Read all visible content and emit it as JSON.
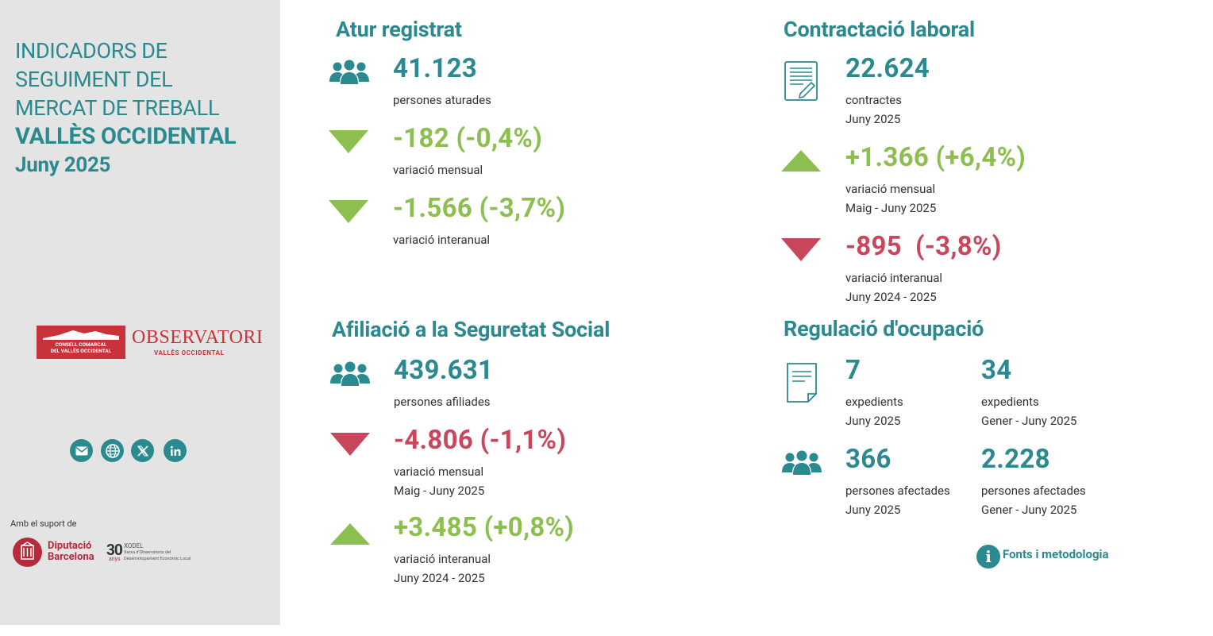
{
  "sidebar": {
    "title_lines": [
      "INDICADORS DE",
      "SEGUIMENT DEL",
      "MERCAT DE TREBALL"
    ],
    "region": "VALLÈS OCCIDENTAL",
    "period": "Juny 2025",
    "logo": {
      "consell_line1": "CONSELL COMARCAL",
      "consell_line2": "DEL VALLÈS OCCIDENTAL",
      "observatori": "OBSERVATORI",
      "observatori_sub": "VALLÈS OCCIDENTAL"
    },
    "social_icons": [
      "mail-icon",
      "globe-icon",
      "x-icon",
      "linkedin-icon"
    ],
    "support_label": "Amb el suport de",
    "support_logo": {
      "name_line1": "Diputació",
      "name_line2": "Barcelona",
      "years": "30",
      "years_unit": "anys",
      "xodel": "XODEL",
      "xodel_line1": "Xarxa d'Observatoris del",
      "xodel_line2": "Desenvolupament Econòmic Local"
    }
  },
  "atur": {
    "title": "Atur registrat",
    "value": "41.123",
    "value_label": "persones aturades",
    "monthly": {
      "value": "-182 (-0,4%)",
      "label": "variació mensual"
    },
    "yearly": {
      "value": "-1.566 (-3,7%)",
      "label": "variació interanual"
    }
  },
  "contractacio": {
    "title": "Contractació laboral",
    "value": "22.624",
    "value_label": "contractes",
    "value_period": "Juny 2025",
    "monthly": {
      "value": "+1.366 (+6,4%)",
      "label": "variació mensual",
      "period": "Maig - Juny 2025"
    },
    "yearly": {
      "value": "-895  (-3,8%)",
      "label": "variació interanual",
      "period": "Juny 2024 - 2025"
    }
  },
  "afiliacio": {
    "title": "Afiliació a la Seguretat Social",
    "value": "439.631",
    "value_label": "persones afiliades",
    "monthly": {
      "value": "-4.806 (-1,1%)",
      "label": "variació mensual",
      "period": "Maig - Juny 2025"
    },
    "yearly": {
      "value": "+3.485 (+0,8%)",
      "label": "variació interanual",
      "period": "Juny 2024 - 2025"
    }
  },
  "regulacio": {
    "title": "Regulació d'ocupació",
    "exp_month": {
      "value": "7",
      "label": "expedients",
      "period": "Juny 2025"
    },
    "exp_ytd": {
      "value": "34",
      "label": "expedients",
      "period": "Gener - Juny 2025"
    },
    "pers_month": {
      "value": "366",
      "label": "persones afectades",
      "period": "Juny 2025"
    },
    "pers_ytd": {
      "value": "2.228",
      "label": "persones afectades",
      "period": "Gener - Juny 2025"
    }
  },
  "footer": {
    "info_glyph": "i",
    "fonts_link": "Fonts i metodologia"
  },
  "colors": {
    "teal": "#2a8a8f",
    "green": "#8cbf4f",
    "red": "#c9475c",
    "sidebar_bg": "#e4e4e4"
  }
}
